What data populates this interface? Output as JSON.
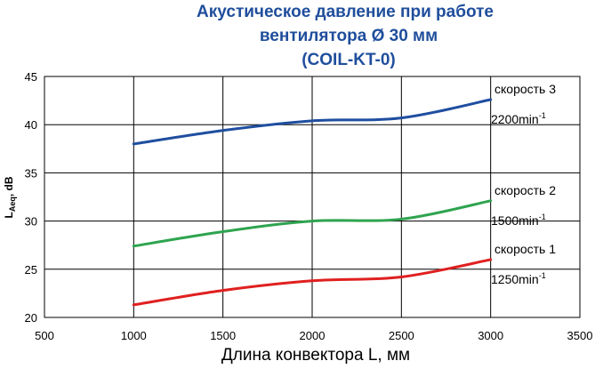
{
  "chart_data": {
    "type": "line",
    "title": [
      "Акустическое давление при работе",
      "вентилятора Ø 30 мм",
      "(COIL-KT-0)"
    ],
    "title_color": "#1f4e9c",
    "xlabel": "Длина конвектора L, мм",
    "ylabel": {
      "main": "L",
      "sub": "Aeq",
      "suffix": ", dB"
    },
    "xlim": [
      500,
      3500
    ],
    "ylim": [
      20,
      45
    ],
    "x_ticks": [
      500,
      1000,
      1500,
      2000,
      2500,
      3000,
      3500
    ],
    "y_ticks": [
      20,
      25,
      30,
      35,
      40,
      45
    ],
    "grid": true,
    "series": [
      {
        "key": "s3",
        "x": [
          1000,
          1500,
          2000,
          2500,
          3000
        ],
        "values": [
          38.0,
          39.4,
          40.4,
          40.7,
          42.6
        ],
        "color": "#1f4ea0",
        "label": "скорость  3",
        "speed": "2200min",
        "speed_sup": "-1"
      },
      {
        "key": "s2",
        "x": [
          1000,
          1500,
          2000,
          2500,
          3000
        ],
        "values": [
          27.4,
          28.9,
          30.0,
          30.2,
          32.1
        ],
        "color": "#2ea44f",
        "label": "скорость  2",
        "speed": "1500min",
        "speed_sup": "-1"
      },
      {
        "key": "s1",
        "x": [
          1000,
          1500,
          2000,
          2500,
          3000
        ],
        "values": [
          21.3,
          22.8,
          23.8,
          24.2,
          26.0
        ],
        "color": "#e02020",
        "label": "скорость  1",
        "speed": "1250min",
        "speed_sup": "-1"
      }
    ]
  }
}
